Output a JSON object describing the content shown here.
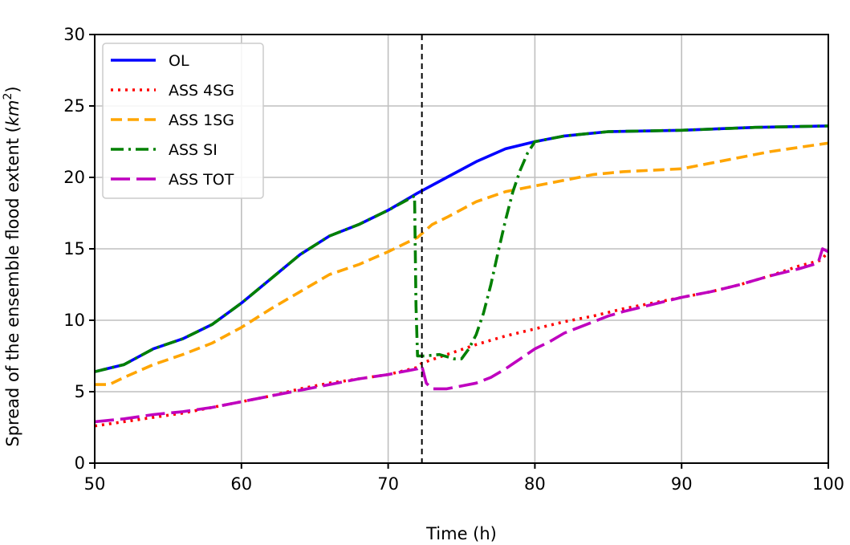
{
  "chart_data": {
    "type": "line",
    "title": "",
    "xlabel": "Time (h)",
    "ylabel_main": "Spread of the ensemble flood extent (",
    "ylabel_unit_base": "km",
    "ylabel_unit_exp": "2",
    "ylabel_close": ")",
    "xlim": [
      50,
      100
    ],
    "ylim": [
      0,
      30
    ],
    "xticks": [
      50,
      60,
      70,
      80,
      90,
      100
    ],
    "yticks": [
      0,
      5,
      10,
      15,
      20,
      25,
      30
    ],
    "grid": true,
    "legend_position": "upper-left",
    "vline_x": 72.3,
    "series": [
      {
        "name": "OL",
        "color": "#0000ff",
        "style": "solid",
        "points": [
          [
            50,
            6.4
          ],
          [
            52,
            6.9
          ],
          [
            54,
            8.0
          ],
          [
            56,
            8.7
          ],
          [
            58,
            9.7
          ],
          [
            60,
            11.2
          ],
          [
            62,
            12.9
          ],
          [
            64,
            14.6
          ],
          [
            66,
            15.9
          ],
          [
            68,
            16.7
          ],
          [
            70,
            17.7
          ],
          [
            72,
            18.9
          ],
          [
            74,
            20.0
          ],
          [
            76,
            21.1
          ],
          [
            78,
            22.0
          ],
          [
            80,
            22.5
          ],
          [
            82,
            22.9
          ],
          [
            85,
            23.2
          ],
          [
            90,
            23.3
          ],
          [
            95,
            23.5
          ],
          [
            100,
            23.6
          ]
        ]
      },
      {
        "name": "ASS 4SG",
        "color": "#ff0000",
        "style": "dotted",
        "points": [
          [
            50,
            2.6
          ],
          [
            52,
            2.9
          ],
          [
            54,
            3.2
          ],
          [
            56,
            3.5
          ],
          [
            58,
            3.9
          ],
          [
            60,
            4.3
          ],
          [
            62,
            4.7
          ],
          [
            64,
            5.2
          ],
          [
            66,
            5.6
          ],
          [
            68,
            5.9
          ],
          [
            70,
            6.2
          ],
          [
            72,
            6.7
          ],
          [
            72.3,
            7.0
          ],
          [
            74,
            7.6
          ],
          [
            76,
            8.3
          ],
          [
            78,
            8.9
          ],
          [
            80,
            9.4
          ],
          [
            82,
            9.9
          ],
          [
            84,
            10.3
          ],
          [
            86,
            10.8
          ],
          [
            88,
            11.2
          ],
          [
            90,
            11.6
          ],
          [
            92,
            12.0
          ],
          [
            94,
            12.5
          ],
          [
            96,
            13.1
          ],
          [
            98,
            13.8
          ],
          [
            99.5,
            14.2
          ],
          [
            100,
            14.8
          ]
        ]
      },
      {
        "name": "ASS 1SG",
        "color": "#ffa500",
        "style": "dashed",
        "points": [
          [
            50,
            5.5
          ],
          [
            51,
            5.5
          ],
          [
            52,
            6.0
          ],
          [
            54,
            6.9
          ],
          [
            56,
            7.6
          ],
          [
            58,
            8.4
          ],
          [
            60,
            9.5
          ],
          [
            62,
            10.8
          ],
          [
            64,
            12.0
          ],
          [
            66,
            13.2
          ],
          [
            68,
            13.9
          ],
          [
            70,
            14.8
          ],
          [
            72,
            15.8
          ],
          [
            73,
            16.7
          ],
          [
            74,
            17.2
          ],
          [
            76,
            18.3
          ],
          [
            78,
            19.0
          ],
          [
            80,
            19.4
          ],
          [
            82,
            19.8
          ],
          [
            84,
            20.2
          ],
          [
            86,
            20.4
          ],
          [
            88,
            20.5
          ],
          [
            90,
            20.6
          ],
          [
            92,
            21.0
          ],
          [
            94,
            21.4
          ],
          [
            96,
            21.8
          ],
          [
            98,
            22.1
          ],
          [
            100,
            22.4
          ]
        ]
      },
      {
        "name": "ASS SI",
        "color": "#008000",
        "style": "dashdot",
        "points": [
          [
            50,
            6.4
          ],
          [
            52,
            6.9
          ],
          [
            54,
            8.0
          ],
          [
            56,
            8.7
          ],
          [
            58,
            9.7
          ],
          [
            60,
            11.2
          ],
          [
            62,
            12.9
          ],
          [
            64,
            14.6
          ],
          [
            66,
            15.9
          ],
          [
            68,
            16.7
          ],
          [
            70,
            17.7
          ],
          [
            71.8,
            18.7
          ],
          [
            71.9,
            11.0
          ],
          [
            72.0,
            7.5
          ],
          [
            72.5,
            7.5
          ],
          [
            73.5,
            7.6
          ],
          [
            74.5,
            7.3
          ],
          [
            75,
            7.3
          ],
          [
            75.5,
            8.0
          ],
          [
            76,
            9.0
          ],
          [
            76.5,
            10.5
          ],
          [
            77,
            12.5
          ],
          [
            77.5,
            14.8
          ],
          [
            78,
            17.0
          ],
          [
            78.5,
            19.0
          ],
          [
            79,
            20.5
          ],
          [
            79.5,
            21.7
          ],
          [
            80,
            22.5
          ],
          [
            82,
            22.9
          ],
          [
            85,
            23.2
          ],
          [
            90,
            23.3
          ],
          [
            95,
            23.5
          ],
          [
            100,
            23.6
          ]
        ]
      },
      {
        "name": "ASS TOT",
        "color": "#bf00bf",
        "style": "longdash",
        "points": [
          [
            50,
            2.9
          ],
          [
            52,
            3.1
          ],
          [
            54,
            3.4
          ],
          [
            56,
            3.6
          ],
          [
            58,
            3.9
          ],
          [
            60,
            4.3
          ],
          [
            62,
            4.7
          ],
          [
            64,
            5.1
          ],
          [
            66,
            5.5
          ],
          [
            68,
            5.9
          ],
          [
            70,
            6.2
          ],
          [
            72,
            6.6
          ],
          [
            72.3,
            6.8
          ],
          [
            72.6,
            5.6
          ],
          [
            73,
            5.2
          ],
          [
            74,
            5.2
          ],
          [
            75,
            5.4
          ],
          [
            76,
            5.6
          ],
          [
            77,
            6.0
          ],
          [
            78,
            6.6
          ],
          [
            79,
            7.3
          ],
          [
            80,
            8.0
          ],
          [
            81,
            8.5
          ],
          [
            82,
            9.1
          ],
          [
            83,
            9.5
          ],
          [
            84,
            9.9
          ],
          [
            85,
            10.3
          ],
          [
            86,
            10.6
          ],
          [
            88,
            11.1
          ],
          [
            90,
            11.6
          ],
          [
            92,
            12.0
          ],
          [
            94,
            12.5
          ],
          [
            96,
            13.1
          ],
          [
            98,
            13.6
          ],
          [
            99.3,
            14.0
          ],
          [
            99.6,
            15.0
          ],
          [
            100,
            14.8
          ]
        ]
      }
    ]
  }
}
